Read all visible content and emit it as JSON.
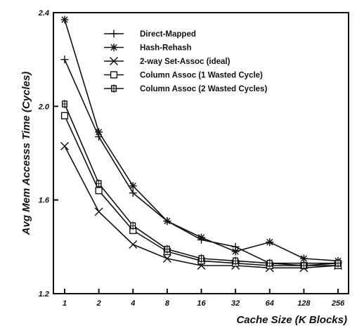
{
  "chart_data": {
    "type": "line",
    "title": "",
    "xlabel": "Cache Size (K Blocks)",
    "ylabel": "Avg Mem Accesss Time (Cycles)",
    "x": [
      "1",
      "2",
      "4",
      "8",
      "16",
      "32",
      "64",
      "128",
      "256"
    ],
    "ylim": [
      1.2,
      2.4
    ],
    "yticks": [
      "1.2",
      "1.6",
      "2.0",
      "2.4"
    ],
    "grid": false,
    "legend_position": "top-center",
    "series": [
      {
        "name": "Direct-Mapped",
        "marker": "plus",
        "values": [
          2.2,
          1.87,
          1.63,
          1.51,
          1.43,
          1.4,
          1.33,
          1.33,
          1.33
        ]
      },
      {
        "name": "Hash-Rehash",
        "marker": "asterisk",
        "values": [
          2.37,
          1.89,
          1.66,
          1.51,
          1.44,
          1.38,
          1.42,
          1.35,
          1.34
        ]
      },
      {
        "name": "2-way Set-Assoc (ideal)",
        "marker": "x",
        "values": [
          1.83,
          1.55,
          1.41,
          1.35,
          1.32,
          1.32,
          1.31,
          1.31,
          1.32
        ]
      },
      {
        "name": "Column Assoc (1 Wasted Cycle)",
        "marker": "square",
        "values": [
          1.96,
          1.64,
          1.47,
          1.38,
          1.34,
          1.33,
          1.32,
          1.32,
          1.32
        ]
      },
      {
        "name": "Column Assoc (2 Wasted Cycles)",
        "marker": "square-plus",
        "values": [
          2.01,
          1.67,
          1.49,
          1.39,
          1.35,
          1.34,
          1.33,
          1.32,
          1.33
        ]
      }
    ]
  }
}
